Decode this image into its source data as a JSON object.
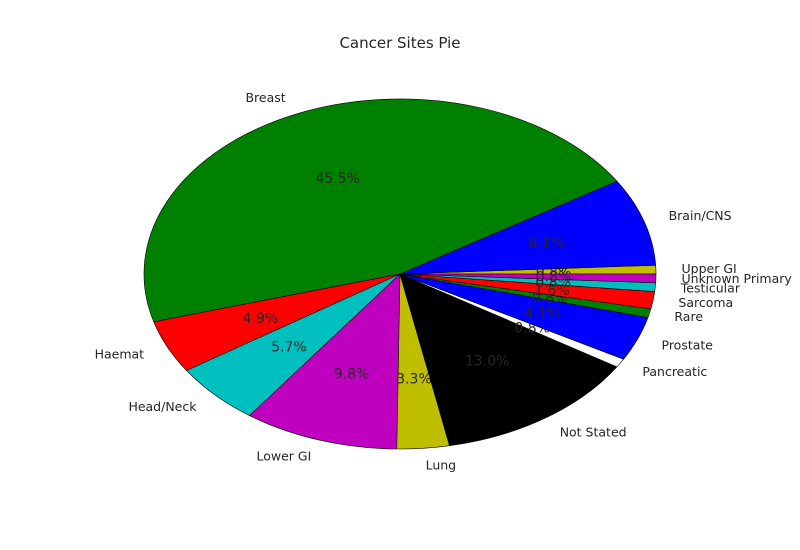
{
  "chart_data": {
    "type": "pie",
    "title": "Cancer Sites Pie",
    "start_angle_deg": 0,
    "direction": "counterclockwise",
    "slices": [
      {
        "label": "Upper GI",
        "value": 0.8,
        "pct_label": "0.8%",
        "color": "#bfbf00"
      },
      {
        "label": "Brain/CNS",
        "value": 8.1,
        "pct_label": "8.1%",
        "color": "#0000ff"
      },
      {
        "label": "Breast",
        "value": 45.5,
        "pct_label": "45.5%",
        "color": "#008000"
      },
      {
        "label": "Haemat",
        "value": 4.9,
        "pct_label": "4.9%",
        "color": "#ff0000"
      },
      {
        "label": "Head/Neck",
        "value": 5.7,
        "pct_label": "5.7%",
        "color": "#00bfbf"
      },
      {
        "label": "Lower GI",
        "value": 9.8,
        "pct_label": "9.8%",
        "color": "#bf00bf"
      },
      {
        "label": "Lung",
        "value": 3.3,
        "pct_label": "3.3%",
        "color": "#bfbf00"
      },
      {
        "label": "Not Stated",
        "value": 13.0,
        "pct_label": "13.0%",
        "color": "#000000"
      },
      {
        "label": "Pancreatic",
        "value": 0.8,
        "pct_label": "0.8%",
        "color": "#ffffff"
      },
      {
        "label": "Prostate",
        "value": 4.1,
        "pct_label": "4.1%",
        "color": "#0000ff"
      },
      {
        "label": "Rare",
        "value": 0.8,
        "pct_label": "0.8%",
        "color": "#008000"
      },
      {
        "label": "Sarcoma",
        "value": 1.6,
        "pct_label": "1.6%",
        "color": "#ff0000"
      },
      {
        "label": "Testicular",
        "value": 0.8,
        "pct_label": "0.8%",
        "color": "#00bfbf"
      },
      {
        "label": "Unknown Primary",
        "value": 0.8,
        "pct_label": "0.8%",
        "color": "#bf00bf"
      }
    ]
  }
}
